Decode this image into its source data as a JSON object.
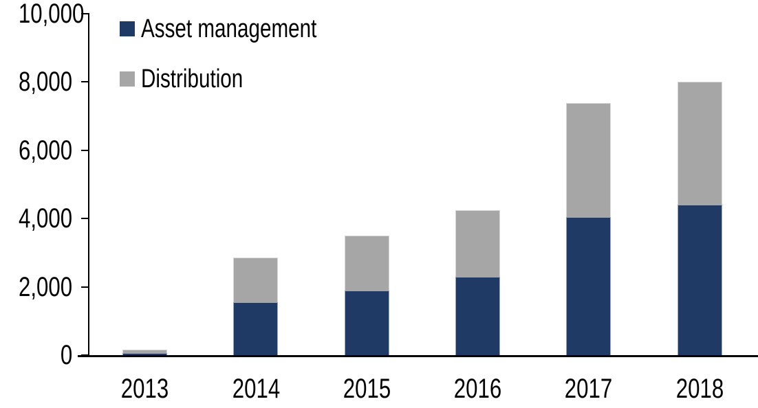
{
  "chart_data": {
    "type": "bar",
    "stacked": true,
    "title": "",
    "xlabel": "",
    "ylabel": "",
    "categories": [
      "2013",
      "2014",
      "2015",
      "2016",
      "2017",
      "2018"
    ],
    "series": [
      {
        "name": "Asset management",
        "color": "#1F3A64",
        "values": [
          70,
          1550,
          1900,
          2300,
          4050,
          4400
        ]
      },
      {
        "name": "Distribution",
        "color": "#A6A6A6",
        "values": [
          100,
          1300,
          1600,
          1950,
          3350,
          3600
        ]
      }
    ],
    "ylim": [
      0,
      10000
    ],
    "ytick_interval": 2000,
    "ytick_labels": [
      "0",
      "2,000",
      "4,000",
      "6,000",
      "8,000",
      "10,000"
    ],
    "grid": false,
    "legend_position": "top-left-inside",
    "axis_color": "#000000",
    "text_color": "#000000",
    "background_color": "#FFFFFF"
  }
}
